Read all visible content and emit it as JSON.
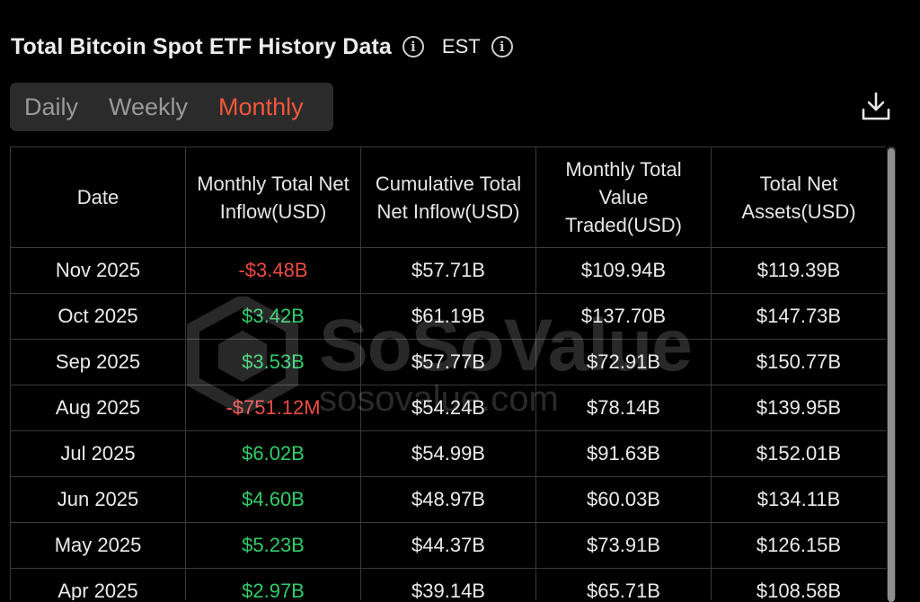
{
  "header": {
    "title": "Total Bitcoin Spot ETF History Data",
    "timezone": "EST"
  },
  "tabs": [
    {
      "label": "Daily",
      "active": false
    },
    {
      "label": "Weekly",
      "active": false
    },
    {
      "label": "Monthly",
      "active": true
    }
  ],
  "icons": {
    "info": "info-circle-icon",
    "download": "download-icon"
  },
  "colors": {
    "accent": "#f4573a",
    "positive": "#2fcd6a",
    "negative": "#ef4b45"
  },
  "table": {
    "columns": [
      "Date",
      "Monthly Total Net Inflow(USD)",
      "Cumulative Total Net Inflow(USD)",
      "Monthly Total Value Traded(USD)",
      "Total Net Assets(USD)"
    ],
    "rows": [
      {
        "date": "Nov 2025",
        "net_inflow": "-$3.48B",
        "cumulative": "$57.71B",
        "value_traded": "$109.94B",
        "net_assets": "$119.39B"
      },
      {
        "date": "Oct 2025",
        "net_inflow": "$3.42B",
        "cumulative": "$61.19B",
        "value_traded": "$137.70B",
        "net_assets": "$147.73B"
      },
      {
        "date": "Sep 2025",
        "net_inflow": "$3.53B",
        "cumulative": "$57.77B",
        "value_traded": "$72.91B",
        "net_assets": "$150.77B"
      },
      {
        "date": "Aug 2025",
        "net_inflow": "-$751.12M",
        "cumulative": "$54.24B",
        "value_traded": "$78.14B",
        "net_assets": "$139.95B"
      },
      {
        "date": "Jul 2025",
        "net_inflow": "$6.02B",
        "cumulative": "$54.99B",
        "value_traded": "$91.63B",
        "net_assets": "$152.01B"
      },
      {
        "date": "Jun 2025",
        "net_inflow": "$4.60B",
        "cumulative": "$48.97B",
        "value_traded": "$60.03B",
        "net_assets": "$134.11B"
      },
      {
        "date": "May 2025",
        "net_inflow": "$5.23B",
        "cumulative": "$44.37B",
        "value_traded": "$73.91B",
        "net_assets": "$126.15B"
      },
      {
        "date": "Apr 2025",
        "net_inflow": "$2.97B",
        "cumulative": "$39.14B",
        "value_traded": "$65.71B",
        "net_assets": "$108.58B"
      }
    ]
  },
  "watermark": {
    "name": "SoSoValue",
    "url": "sosovalue.com"
  }
}
